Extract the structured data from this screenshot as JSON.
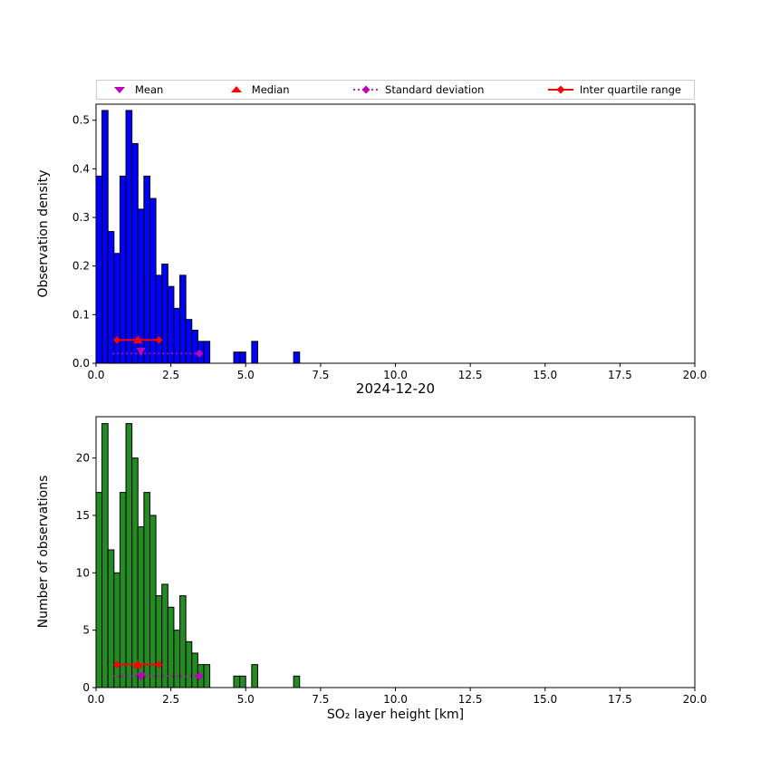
{
  "figure": {
    "title": "2024-12-20",
    "xlabel": "SO₂ layer height [km]",
    "background": "#ffffff"
  },
  "legend": {
    "items": [
      {
        "label": "Mean",
        "marker": "triangle-down",
        "color": "#bf00bf"
      },
      {
        "label": "Median",
        "marker": "triangle-up",
        "color": "#ff0000"
      },
      {
        "label": "Standard deviation",
        "marker": "diamond-with-dotted-line",
        "color": "#bf00bf"
      },
      {
        "label": "Inter quartile range",
        "marker": "diamond-with-solid-line",
        "color": "#ff0000"
      }
    ]
  },
  "chart_data": [
    {
      "type": "bar",
      "subtype": "histogram",
      "name": "density-histogram",
      "ylabel": "Observation density",
      "bar_color": "#0000ff",
      "edge_color": "#000000",
      "bin_start": 0.0,
      "bin_width": 0.2,
      "values": [
        0.385,
        0.52,
        0.271,
        0.226,
        0.385,
        0.52,
        0.452,
        0.317,
        0.385,
        0.339,
        0.181,
        0.204,
        0.158,
        0.113,
        0.181,
        0.09,
        0.068,
        0.045,
        0.045,
        0,
        0,
        0,
        0,
        0.023,
        0.023,
        0,
        0.045,
        0,
        0,
        0,
        0,
        0,
        0,
        0.023,
        0
      ],
      "xlim": [
        0,
        20
      ],
      "ylim": [
        0,
        0.533
      ],
      "xtick_values": [
        0,
        2.5,
        5,
        7.5,
        10,
        12.5,
        15,
        17.5,
        20
      ],
      "xtick_labels": [
        "0.0",
        "2.5",
        "5.0",
        "7.5",
        "10.0",
        "12.5",
        "15.0",
        "17.5",
        "20.0"
      ],
      "ytick_values": [
        0,
        0.1,
        0.2,
        0.3,
        0.4,
        0.5
      ],
      "ytick_labels": [
        "0.0",
        "0.1",
        "0.2",
        "0.3",
        "0.4",
        "0.5"
      ],
      "markers": {
        "mean": {
          "x": 1.5,
          "y": 0.025
        },
        "median": {
          "x": 1.4,
          "y": 0.048
        },
        "std": {
          "x_from": 0.55,
          "x_to": 3.45,
          "y": 0.02,
          "marker_x": 3.45
        },
        "iqr": {
          "x_from": 0.7,
          "x_to": 2.1,
          "y": 0.048,
          "marker_xs": [
            0.7,
            1.4,
            2.1
          ]
        }
      }
    },
    {
      "type": "bar",
      "subtype": "histogram",
      "name": "count-histogram",
      "ylabel": "Number of observations",
      "bar_color": "#228b22",
      "edge_color": "#000000",
      "bin_start": 0.0,
      "bin_width": 0.2,
      "values": [
        17,
        23,
        12,
        10,
        17,
        23,
        20,
        14,
        17,
        15,
        8,
        9,
        7,
        5,
        8,
        4,
        3,
        2,
        2,
        0,
        0,
        0,
        0,
        1,
        1,
        0,
        2,
        0,
        0,
        0,
        0,
        0,
        0,
        1,
        0
      ],
      "xlim": [
        0,
        20
      ],
      "ylim": [
        0,
        23.6
      ],
      "xtick_values": [
        0,
        2.5,
        5,
        7.5,
        10,
        12.5,
        15,
        17.5,
        20
      ],
      "xtick_labels": [
        "0.0",
        "2.5",
        "5.0",
        "7.5",
        "10.0",
        "12.5",
        "15.0",
        "17.5",
        "20.0"
      ],
      "ytick_values": [
        0,
        5,
        10,
        15,
        20
      ],
      "ytick_labels": [
        "0",
        "5",
        "10",
        "15",
        "20"
      ],
      "markers": {
        "mean": {
          "x": 1.5,
          "y": 1
        },
        "median": {
          "x": 1.4,
          "y": 2
        },
        "std": {
          "x_from": 0.55,
          "x_to": 3.45,
          "y": 1,
          "marker_x": 3.45
        },
        "iqr": {
          "x_from": 0.7,
          "x_to": 2.1,
          "y": 2,
          "marker_xs": [
            0.7,
            1.4,
            2.1
          ]
        }
      }
    }
  ]
}
